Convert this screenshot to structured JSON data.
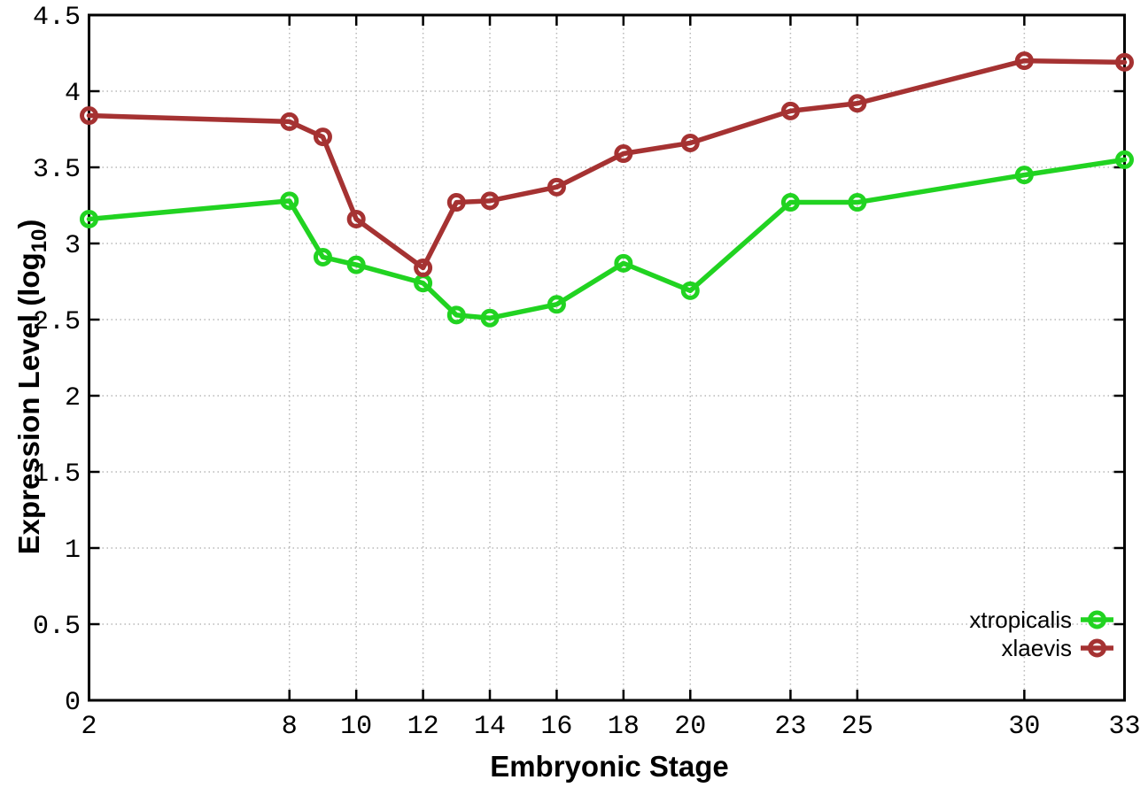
{
  "page": {
    "background_color": "#ffffff"
  },
  "chart_data": {
    "type": "line",
    "title": "",
    "xlabel": "Embryonic Stage",
    "ylabel": "Expression Level (log10)",
    "ylabel_parts": {
      "pre": "Expression Level (log",
      "sub": "10",
      "post": ")"
    },
    "xlim": [
      2,
      33
    ],
    "ylim": [
      0,
      4.5
    ],
    "grid": true,
    "grid_style": "dotted",
    "x_ticks": [
      2,
      8,
      10,
      12,
      14,
      16,
      18,
      20,
      23,
      25,
      30,
      33
    ],
    "x_tick_labels": [
      "2",
      "8",
      "10",
      "12",
      "14",
      "16",
      "18",
      "20",
      "23",
      "25",
      "30",
      "33"
    ],
    "y_ticks": [
      0,
      0.5,
      1,
      1.5,
      2,
      2.5,
      3,
      3.5,
      4,
      4.5
    ],
    "y_tick_labels": [
      "0",
      "0.5",
      "1",
      "1.5",
      "2",
      "2.5",
      "3",
      "3.5",
      "4",
      "4.5"
    ],
    "x": [
      2,
      8,
      9,
      10,
      12,
      13,
      14,
      16,
      18,
      20,
      23,
      25,
      30,
      33
    ],
    "series": [
      {
        "name": "xtropicalis",
        "color": "#21d321",
        "marker": "open-circle",
        "values": [
          3.16,
          3.28,
          2.91,
          2.86,
          2.74,
          2.53,
          2.51,
          2.6,
          2.87,
          2.69,
          3.27,
          3.27,
          3.45,
          3.55
        ]
      },
      {
        "name": "xlaevis",
        "color": "#a53232",
        "marker": "open-circle",
        "values": [
          3.84,
          3.8,
          3.7,
          3.16,
          2.84,
          3.27,
          3.28,
          3.37,
          3.59,
          3.66,
          3.87,
          3.92,
          4.2,
          4.19
        ]
      }
    ],
    "legend": {
      "position": "inside-bottom-right",
      "entries": [
        "xtropicalis",
        "xlaevis"
      ]
    },
    "colors": {
      "axis": "#000000",
      "grid": "#b8b8b8",
      "text": "#000000",
      "background": "#ffffff"
    }
  }
}
